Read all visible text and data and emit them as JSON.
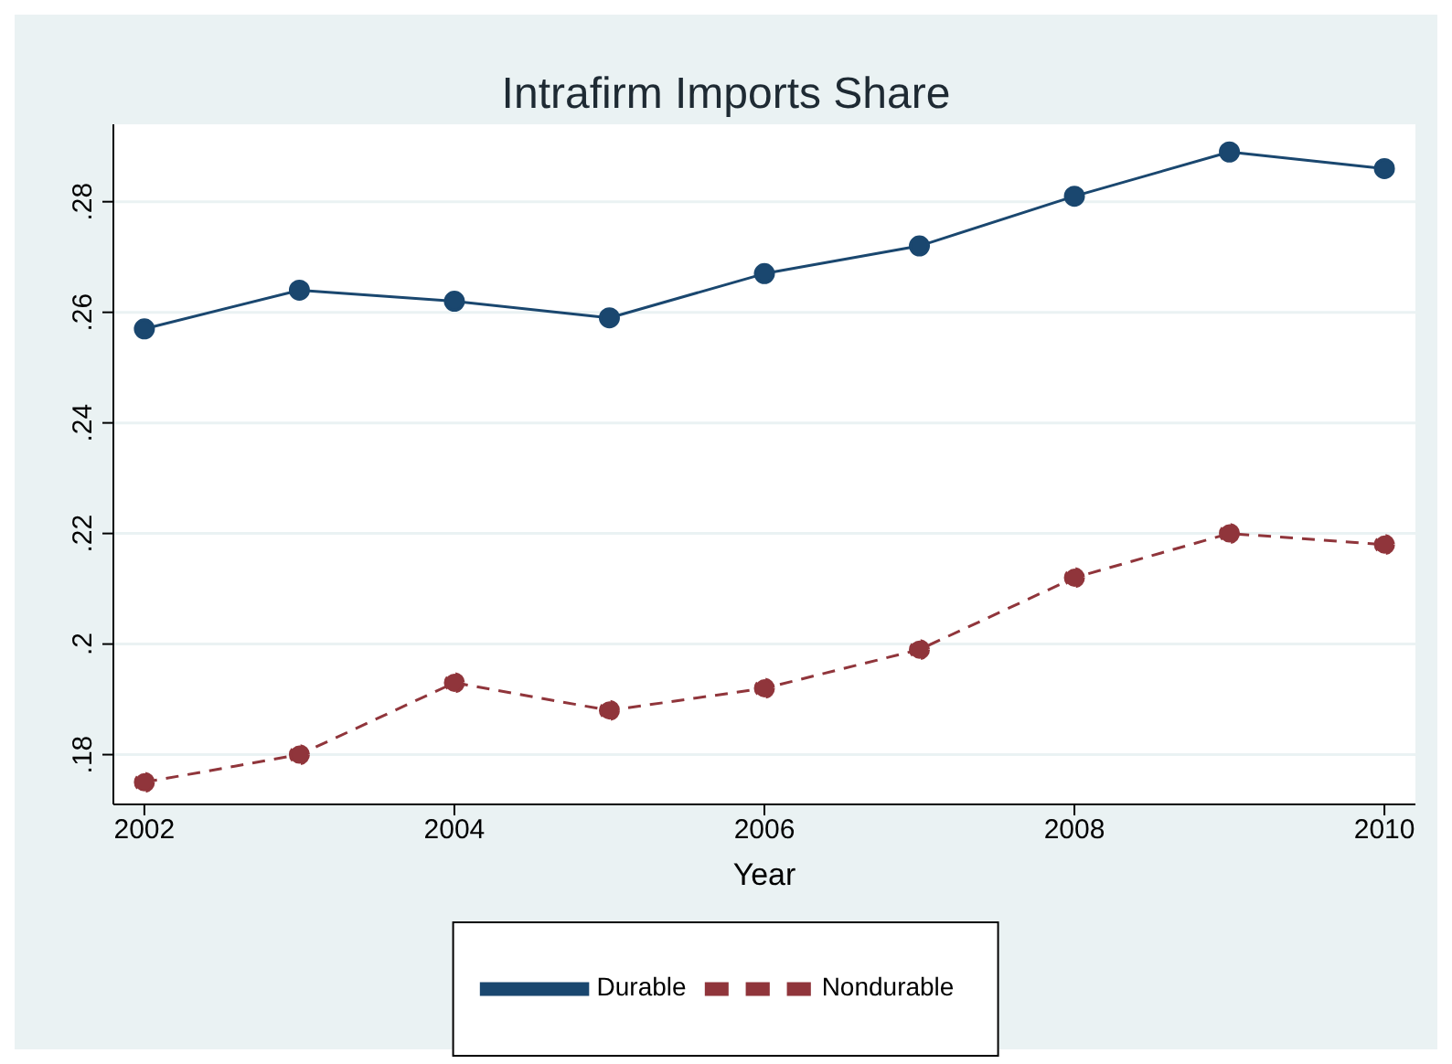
{
  "chart_data": {
    "type": "line",
    "title": "Intrafirm Imports Share",
    "xlabel": "Year",
    "x": [
      2002,
      2003,
      2004,
      2005,
      2006,
      2007,
      2008,
      2009,
      2010
    ],
    "series": [
      {
        "name": "Durable",
        "color": "#1a476f",
        "line_style": "solid",
        "values": [
          0.257,
          0.264,
          0.262,
          0.259,
          0.267,
          0.272,
          0.281,
          0.289,
          0.286
        ]
      },
      {
        "name": "Nondurable",
        "color": "#90353b",
        "line_style": "dashed",
        "values": [
          0.175,
          0.18,
          0.193,
          0.188,
          0.192,
          0.199,
          0.212,
          0.22,
          0.218
        ]
      }
    ],
    "xlim": [
      2001.8,
      2010.2
    ],
    "xticks": [
      2002,
      2004,
      2006,
      2008,
      2010
    ],
    "ylim": [
      0.171,
      0.294
    ],
    "yticks": [
      {
        "value": 0.18,
        "label": ".18"
      },
      {
        "value": 0.2,
        "label": ".2"
      },
      {
        "value": 0.22,
        "label": ".22"
      },
      {
        "value": 0.24,
        "label": ".24"
      },
      {
        "value": 0.26,
        "label": ".26"
      },
      {
        "value": 0.28,
        "label": ".28"
      }
    ],
    "grid": "y",
    "legend": "bottom",
    "marker": "circle"
  }
}
